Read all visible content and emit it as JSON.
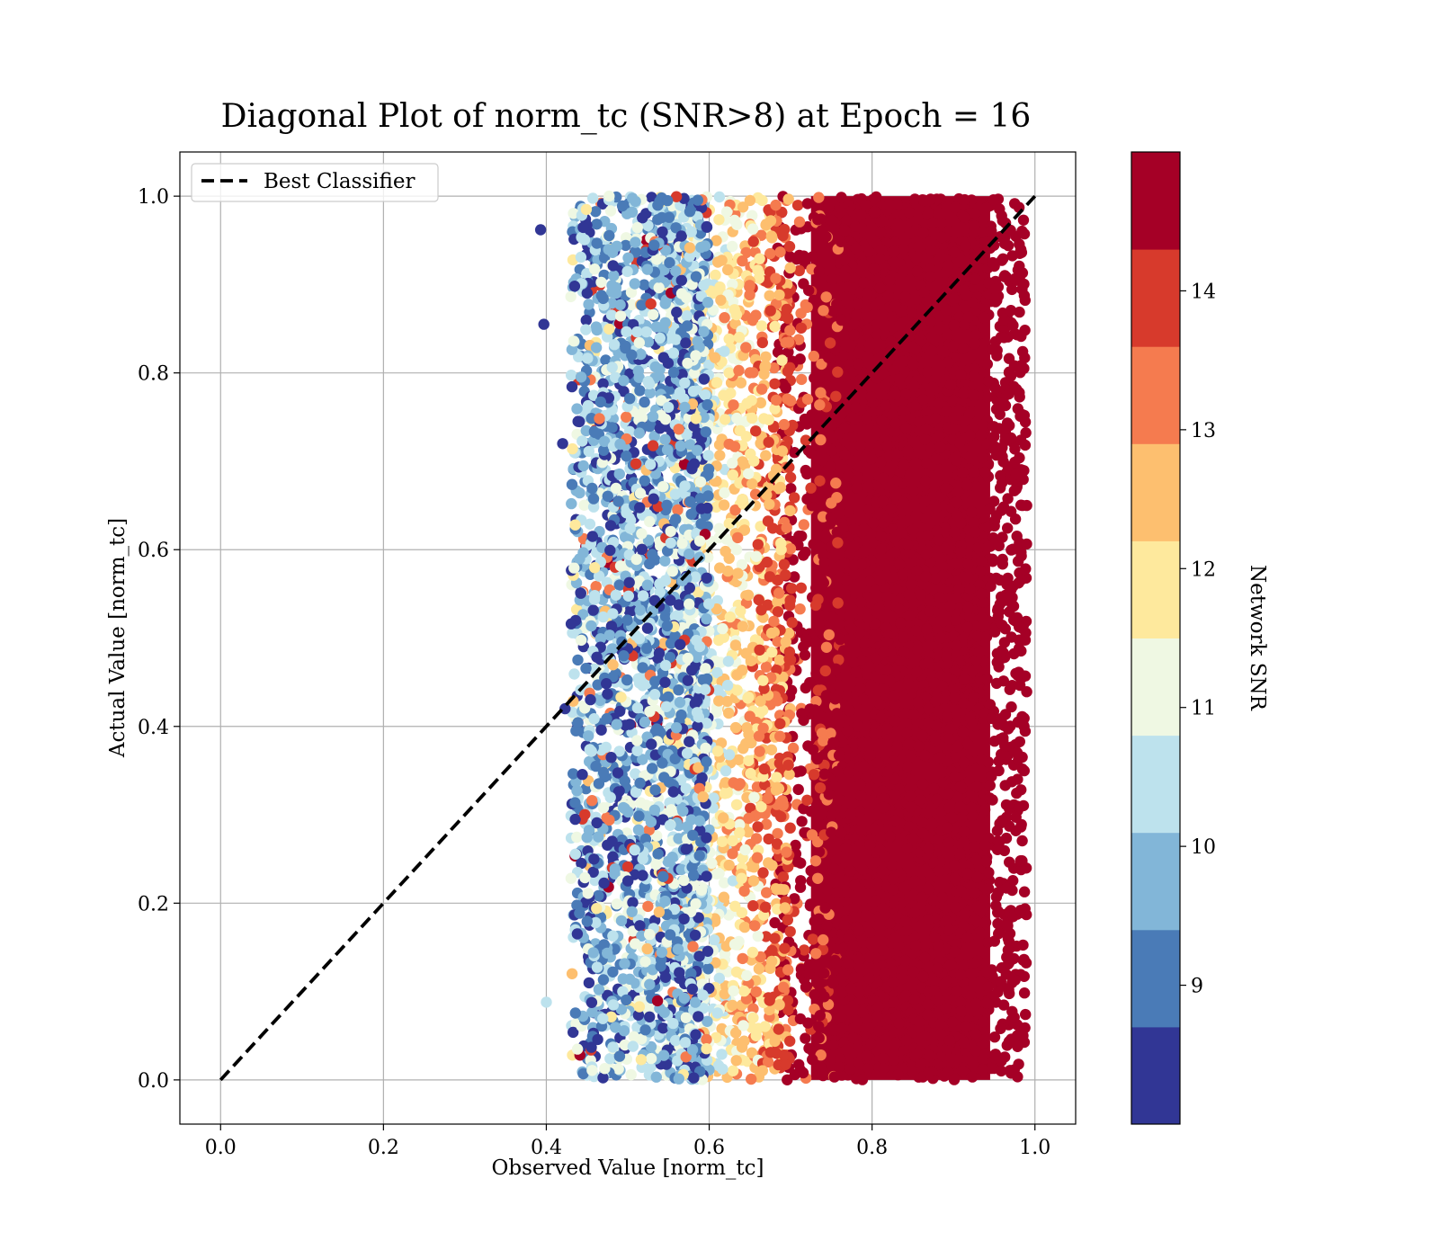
{
  "chart_data": {
    "type": "scatter",
    "title": "Diagonal Plot of norm_tc (SNR>8) at Epoch = 16",
    "xlabel": "Observed Value [norm_tc]",
    "ylabel": "Actual Value [norm_tc]",
    "xlim": [
      -0.05,
      1.05
    ],
    "ylim": [
      -0.05,
      1.05
    ],
    "x_ticks": [
      "0.0",
      "0.2",
      "0.4",
      "0.6",
      "0.8",
      "1.0"
    ],
    "y_ticks": [
      "0.0",
      "0.2",
      "0.4",
      "0.6",
      "0.8",
      "1.0"
    ],
    "grid": true,
    "legend": {
      "placement": "upper-left",
      "entries": [
        {
          "label": "Best Classifier",
          "style": "dashed",
          "color": "#000000"
        }
      ]
    },
    "reference_line": {
      "x": [
        0.0,
        1.0
      ],
      "y": [
        0.0,
        1.0
      ],
      "style": "dashed",
      "color": "#000000"
    },
    "colorbar": {
      "label": "Network SNR",
      "range": [
        8.0,
        15.0
      ],
      "ticks": [
        "9",
        "10",
        "11",
        "12",
        "13",
        "14"
      ],
      "bins": [
        {
          "from": 8.0,
          "to": 8.7,
          "color": "#313695"
        },
        {
          "from": 8.7,
          "to": 9.4,
          "color": "#4a7bb7"
        },
        {
          "from": 9.4,
          "to": 10.1,
          "color": "#82b6d8"
        },
        {
          "from": 10.1,
          "to": 10.8,
          "color": "#bde2ed"
        },
        {
          "from": 10.8,
          "to": 11.5,
          "color": "#eff8e3"
        },
        {
          "from": 11.5,
          "to": 12.2,
          "color": "#fee99d"
        },
        {
          "from": 12.2,
          "to": 12.9,
          "color": "#fdbf6f"
        },
        {
          "from": 12.9,
          "to": 13.6,
          "color": "#f57b4f"
        },
        {
          "from": 13.6,
          "to": 14.3,
          "color": "#d73a2c"
        },
        {
          "from": 14.3,
          "to": 15.0,
          "color": "#a50026"
        }
      ]
    },
    "point_cloud": {
      "x_range": [
        0.43,
        0.99
      ],
      "y_range": [
        0.0,
        1.0
      ],
      "color_by": "Network SNR",
      "structure": "SNR increases with observed value; x<0.6 mostly SNR 8–11, x 0.6–0.7 mixed SNR 11–14, x>0.7 saturated SNR >14",
      "bands": [
        {
          "x": [
            0.43,
            0.6
          ],
          "snr": [
            8.0,
            11.2
          ]
        },
        {
          "x": [
            0.55,
            0.7
          ],
          "snr": [
            10.0,
            13.8
          ]
        },
        {
          "x": [
            0.68,
            0.99
          ],
          "snr": [
            14.3,
            15.0
          ]
        }
      ],
      "outliers": [
        {
          "x": 0.393,
          "y": 0.962,
          "snr": 8.3
        },
        {
          "x": 0.397,
          "y": 0.855,
          "snr": 8.3
        },
        {
          "x": 0.4,
          "y": 0.088,
          "snr": 10.4
        },
        {
          "x": 0.423,
          "y": 0.42,
          "snr": 8.3
        },
        {
          "x": 0.42,
          "y": 0.72,
          "snr": 8.3
        }
      ]
    }
  }
}
